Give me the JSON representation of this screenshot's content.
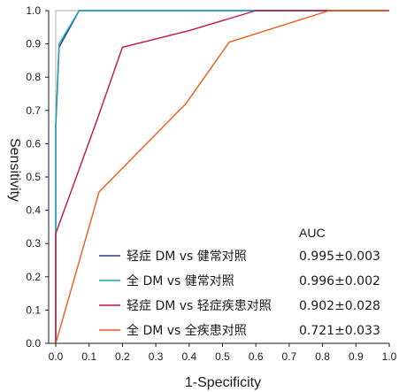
{
  "chart_data": {
    "type": "line",
    "xlabel": "1-Specificity",
    "ylabel": "Sensitivity",
    "xlim": [
      0,
      1
    ],
    "ylim": [
      0,
      1
    ],
    "x_ticks": [
      "0.0",
      "0.1",
      "0.2",
      "0.3",
      "0.4",
      "0.5",
      "0.6",
      "0.7",
      "0.8",
      "0.9",
      "1.0"
    ],
    "y_ticks": [
      "0.0",
      "0.1",
      "0.2",
      "0.3",
      "0.4",
      "0.5",
      "0.6",
      "0.7",
      "0.8",
      "0.9",
      "1.0"
    ],
    "grid": false,
    "legend_placement": "bottom-right",
    "legend_value_header": "AUC",
    "reference_line": {
      "x": [
        0,
        0,
        1
      ],
      "y": [
        0,
        1,
        1
      ],
      "color": "#b0b0b0"
    },
    "series": [
      {
        "name": "轻症 DM vs 健常对照",
        "auc": "0.995±0.003",
        "color": "#2b3a8c",
        "x": [
          0,
          0,
          0.01,
          0.07,
          1.0
        ],
        "y": [
          0,
          0.65,
          0.89,
          1.0,
          1.0
        ]
      },
      {
        "name": "全 DM vs 健常对照",
        "auc": "0.996±0.002",
        "color": "#1aa3b8",
        "x": [
          0,
          0,
          0.01,
          0.07,
          1.0
        ],
        "y": [
          0,
          0.66,
          0.9,
          1.0,
          1.0
        ]
      },
      {
        "name": "轻症 DM vs 轻症疾患对照",
        "auc": "0.902±0.028",
        "color": "#c0143c",
        "x": [
          0,
          0,
          0.12,
          0.2,
          0.4,
          0.6,
          1.0
        ],
        "y": [
          0,
          0.33,
          0.66,
          0.89,
          0.94,
          1.0,
          1.0
        ]
      },
      {
        "name": "全 DM vs 全疾患对照",
        "auc": "0.721±0.033",
        "color": "#ee5a1a",
        "x": [
          0,
          0.13,
          0.39,
          0.52,
          0.82,
          1.0
        ],
        "y": [
          0,
          0.455,
          0.72,
          0.905,
          1.0,
          1.0
        ]
      }
    ]
  }
}
